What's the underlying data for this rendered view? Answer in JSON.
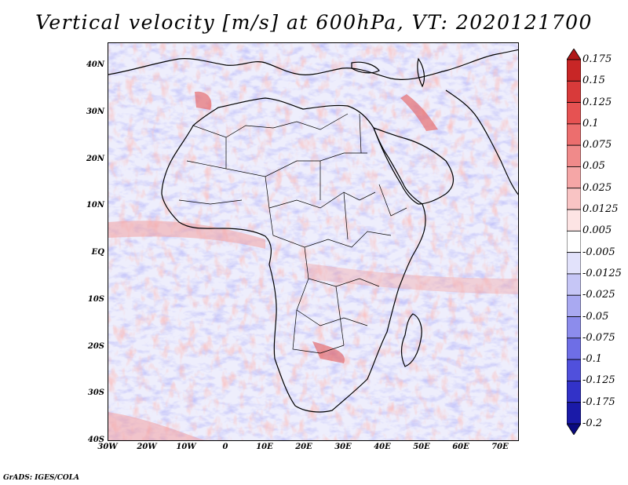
{
  "title": "Vertical velocity [m/s] at 600hPa, VT: 2020121700",
  "credit": "GrADS: IGES/COLA",
  "axes": {
    "lat_ticks": [
      "40N",
      "30N",
      "20N",
      "10N",
      "EQ",
      "10S",
      "20S",
      "30S",
      "40S"
    ],
    "lon_ticks": [
      "30W",
      "20W",
      "10W",
      "0",
      "10E",
      "20E",
      "30E",
      "40E",
      "50E",
      "60E",
      "70E"
    ],
    "lat_range": [
      -40,
      45
    ],
    "lon_range": [
      -30,
      75
    ]
  },
  "colorbar": {
    "labels": [
      "0.175",
      "0.15",
      "0.125",
      "0.1",
      "0.075",
      "0.05",
      "0.025",
      "0.0125",
      "0.005",
      "-0.005",
      "-0.0125",
      "-0.025",
      "-0.05",
      "-0.075",
      "-0.1",
      "-0.125",
      "-0.175",
      "-0.2"
    ],
    "colors": [
      "#b01818",
      "#c82626",
      "#d83a3a",
      "#e65252",
      "#ec6e6e",
      "#f08a8a",
      "#f5a6a6",
      "#f9c4c4",
      "#fde4e4",
      "#ffffff",
      "#e2e2fb",
      "#c6c6f6",
      "#a9a9f1",
      "#8c8cec",
      "#6e6ee6",
      "#5050dc",
      "#3232c8",
      "#1a1aa8",
      "#0a0a80"
    ]
  }
}
